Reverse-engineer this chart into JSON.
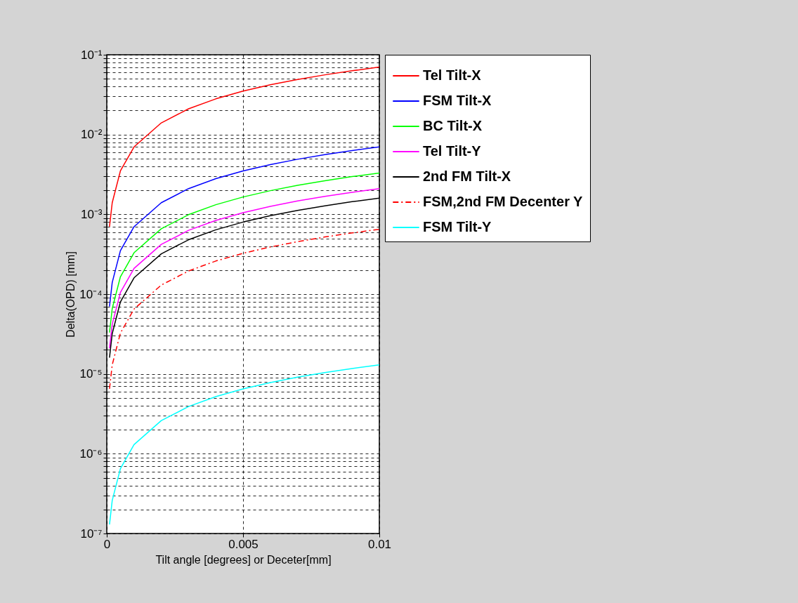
{
  "chart_data": {
    "type": "line",
    "xlabel": "Tilt angle [degrees] or Deceter[mm]",
    "ylabel": "Delta(OPD) [mm]",
    "log": "y",
    "grid": true,
    "legend": "right",
    "xlim": [
      0,
      0.01
    ],
    "xticks": [
      0,
      0.005,
      0.01
    ],
    "ylim": [
      1e-07,
      0.1
    ],
    "yticks": [
      {
        "value": 1e-07,
        "label": "10⁻⁷"
      },
      {
        "value": 2e-07,
        "label": null
      },
      {
        "value": 3e-07,
        "label": null
      },
      {
        "value": 4e-07,
        "label": null
      },
      {
        "value": 5e-07,
        "label": null
      },
      {
        "value": 6e-07,
        "label": null
      },
      {
        "value": 7e-07,
        "label": null
      },
      {
        "value": 8e-07,
        "label": null
      },
      {
        "value": 9e-07,
        "label": null
      },
      {
        "value": 1e-06,
        "label": "10⁻⁶"
      },
      {
        "value": 2e-06,
        "label": null
      },
      {
        "value": 3e-06,
        "label": null
      },
      {
        "value": 4e-06,
        "label": null
      },
      {
        "value": 5e-06,
        "label": null
      },
      {
        "value": 6e-06,
        "label": null
      },
      {
        "value": 7e-06,
        "label": null
      },
      {
        "value": 8e-06,
        "label": null
      },
      {
        "value": 9e-06,
        "label": null
      },
      {
        "value": 1e-05,
        "label": "10⁻⁵"
      },
      {
        "value": 2e-05,
        "label": null
      },
      {
        "value": 3e-05,
        "label": null
      },
      {
        "value": 4e-05,
        "label": null
      },
      {
        "value": 5e-05,
        "label": null
      },
      {
        "value": 6e-05,
        "label": null
      },
      {
        "value": 7e-05,
        "label": null
      },
      {
        "value": 8e-05,
        "label": null
      },
      {
        "value": 9e-05,
        "label": null
      },
      {
        "value": 0.0001,
        "label": "10⁻⁴"
      },
      {
        "value": 0.0002,
        "label": null
      },
      {
        "value": 0.0003,
        "label": null
      },
      {
        "value": 0.0004,
        "label": null
      },
      {
        "value": 0.0005,
        "label": null
      },
      {
        "value": 0.0006,
        "label": null
      },
      {
        "value": 0.0007,
        "label": null
      },
      {
        "value": 0.0008,
        "label": null
      },
      {
        "value": 0.0009,
        "label": null
      },
      {
        "value": 0.001,
        "label": "10⁻³"
      },
      {
        "value": 0.002,
        "label": null
      },
      {
        "value": 0.003,
        "label": null
      },
      {
        "value": 0.004,
        "label": null
      },
      {
        "value": 0.005,
        "label": null
      },
      {
        "value": 0.006,
        "label": null
      },
      {
        "value": 0.007,
        "label": null
      },
      {
        "value": 0.008,
        "label": null
      },
      {
        "value": 0.009,
        "label": null
      },
      {
        "value": 0.01,
        "label": "10⁻²"
      },
      {
        "value": 0.02,
        "label": null
      },
      {
        "value": 0.03,
        "label": null
      },
      {
        "value": 0.04,
        "label": null
      },
      {
        "value": 0.05,
        "label": null
      },
      {
        "value": 0.06,
        "label": null
      },
      {
        "value": 0.07,
        "label": null
      },
      {
        "value": 0.08,
        "label": null
      },
      {
        "value": 0.09,
        "label": null
      },
      {
        "value": 0.1,
        "label": "10⁻¹"
      }
    ],
    "x": [
      0.0001,
      0.0002,
      0.0005,
      0.001,
      0.002,
      0.003,
      0.004,
      0.005,
      0.006,
      0.007,
      0.008,
      0.009,
      0.01
    ],
    "series": [
      {
        "name": "Tel Tilt-X",
        "color": "#ff0000",
        "line_style": "solid",
        "values": [
          0.0007,
          0.0014,
          0.0035,
          0.007,
          0.014,
          0.021,
          0.028,
          0.035,
          0.042,
          0.049,
          0.056,
          0.063,
          0.07
        ]
      },
      {
        "name": "FSM Tilt-X",
        "color": "#0000ff",
        "line_style": "solid",
        "values": [
          7e-05,
          0.00014,
          0.00035,
          0.0007,
          0.0014,
          0.0021,
          0.0028,
          0.0035,
          0.0042,
          0.0049,
          0.0056,
          0.0063,
          0.007
        ]
      },
      {
        "name": "BC Tilt-X",
        "color": "#00ff00",
        "line_style": "solid",
        "values": [
          3.3e-05,
          6.6e-05,
          0.000165,
          0.00033,
          0.00066,
          0.00099,
          0.00132,
          0.00165,
          0.00198,
          0.00231,
          0.00264,
          0.00297,
          0.0033
        ]
      },
      {
        "name": "Tel Tilt-Y",
        "color": "#ff00ff",
        "line_style": "solid",
        "values": [
          2.1e-05,
          4.2e-05,
          0.000105,
          0.00021,
          0.00042,
          0.00063,
          0.00084,
          0.00105,
          0.00126,
          0.00147,
          0.00168,
          0.00189,
          0.0021
        ]
      },
      {
        "name": "2nd FM Tilt-X",
        "color": "#000000",
        "line_style": "solid",
        "values": [
          1.6e-05,
          3.2e-05,
          8e-05,
          0.00016,
          0.00032,
          0.00048,
          0.00064,
          0.0008,
          0.00096,
          0.00112,
          0.00128,
          0.00144,
          0.0016
        ]
      },
      {
        "name": "FSM,2nd FM Decenter Y",
        "color": "#ff0000",
        "line_style": "dashed",
        "values": [
          6.5e-06,
          1.3e-05,
          3.25e-05,
          6.5e-05,
          0.00013,
          0.000195,
          0.00026,
          0.000325,
          0.00039,
          0.000455,
          0.00052,
          0.000585,
          0.00065
        ]
      },
      {
        "name": "FSM Tilt-Y",
        "color": "#00ffff",
        "line_style": "solid",
        "values": [
          1.3e-07,
          2.6e-07,
          6.5e-07,
          1.3e-06,
          2.6e-06,
          3.9e-06,
          5.2e-06,
          6.5e-06,
          7.8e-06,
          9.1e-06,
          1.04e-05,
          1.17e-05,
          1.3e-05
        ]
      }
    ]
  }
}
